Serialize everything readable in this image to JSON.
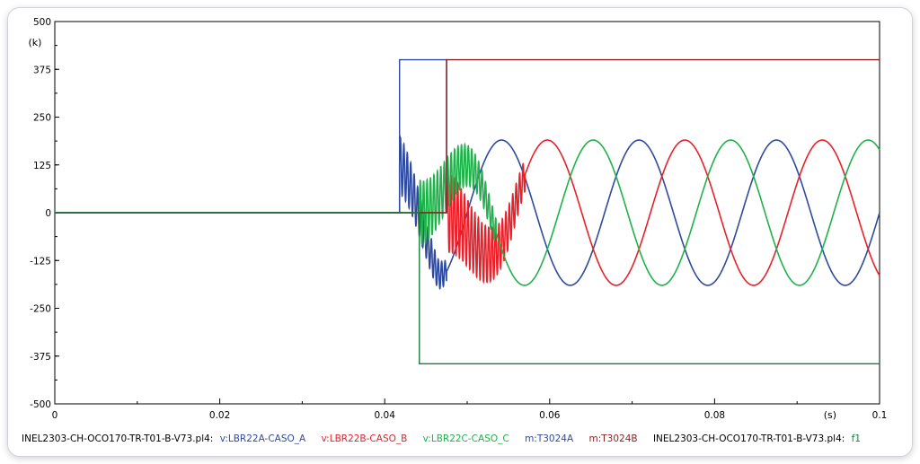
{
  "chart_data": {
    "type": "line",
    "xlim": [
      0,
      0.1
    ],
    "ylim": [
      -500,
      500
    ],
    "x_ticks": [
      "0",
      "0.02",
      "0.04",
      "0.06",
      "0.08",
      "0.1"
    ],
    "y_ticks": [
      "500",
      "375",
      "250",
      "125",
      "0",
      "-125",
      "-250",
      "-375",
      "-500"
    ],
    "x_unit": "(s)",
    "y_unit": "(k)",
    "grid": false,
    "series": [
      {
        "name": "v:LBR22A-CASO_A",
        "color": "#2e4a9e",
        "kind": "voltage",
        "amplitude": 190,
        "phase_deg": 0,
        "start": 0.0418,
        "transient": [
          [
            0.0418,
            0.0475,
            75,
            125
          ]
        ]
      },
      {
        "name": "v:LBR22B-CASO_B",
        "color": "#e8202a",
        "kind": "voltage",
        "amplitude": 190,
        "phase_deg": -120,
        "start": 0.0475,
        "transient": [
          [
            0.0475,
            0.057,
            105,
            0
          ]
        ]
      },
      {
        "name": "v:LBR22C-CASO_C",
        "color": "#1fb14a",
        "kind": "voltage",
        "amplitude": 190,
        "phase_deg": 120,
        "start": 0.0442,
        "transient": [
          [
            0.0442,
            0.0535,
            85,
            0
          ]
        ]
      },
      {
        "name": "m:T3024A",
        "color": "#2e4a9e",
        "kind": "step",
        "points": [
          [
            0,
            0
          ],
          [
            0.0418,
            0
          ],
          [
            0.0418,
            400
          ],
          [
            0.0475,
            400
          ],
          [
            0.0475,
            0
          ]
        ]
      },
      {
        "name": "m:T3024B",
        "color": "#8b1e1e",
        "kind": "step",
        "points": [
          [
            0,
            0
          ],
          [
            0.0475,
            0
          ],
          [
            0.0475,
            400
          ],
          [
            0.1,
            400
          ]
        ]
      },
      {
        "name": "f1",
        "color": "#1b7d3c",
        "kind": "step",
        "points": [
          [
            0,
            0
          ],
          [
            0.0442,
            0
          ],
          [
            0.0442,
            -395
          ],
          [
            0.1,
            -395
          ]
        ]
      }
    ],
    "frequency_hz": 60
  },
  "legend": {
    "file1": "INEL2303-CH-OCO170-TR-T01-B-V73.pl4:",
    "file2": "INEL2303-CH-OCO170-TR-T01-B-V73.pl4:",
    "items": [
      {
        "label": "v:LBR22A-CASO_A",
        "color": "#2e4a9e"
      },
      {
        "label": "v:LBR22B-CASO_B",
        "color": "#e8202a"
      },
      {
        "label": "v:LBR22C-CASO_C",
        "color": "#1fb14a"
      },
      {
        "label": "m:T3024A",
        "color": "#2e4a9e"
      },
      {
        "label": "m:T3024B",
        "color": "#8b1e1e"
      }
    ],
    "item2": {
      "label": "f1",
      "color": "#1b7d3c"
    }
  }
}
